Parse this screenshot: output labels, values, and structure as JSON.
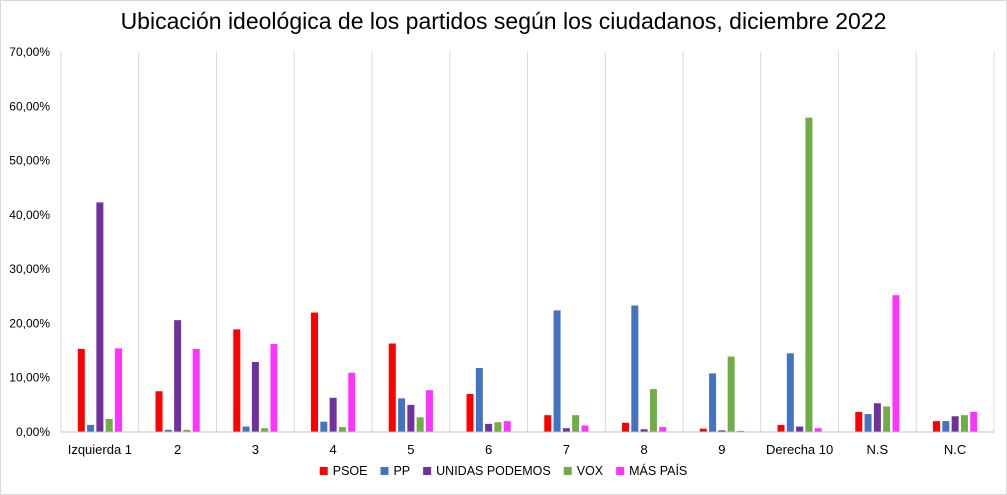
{
  "chart_data": {
    "type": "bar",
    "title": "Ubicación ideológica de los partidos según los ciudadanos, diciembre 2022",
    "xlabel": "",
    "ylabel": "",
    "ylim": [
      0,
      70
    ],
    "yticks": [
      "0,00%",
      "10,00%",
      "20,00%",
      "30,00%",
      "40,00%",
      "50,00%",
      "60,00%",
      "70,00%"
    ],
    "grid": "vertical",
    "legend_position": "bottom",
    "categories": [
      "Izquierda 1",
      "2",
      "3",
      "4",
      "5",
      "6",
      "7",
      "8",
      "9",
      "Derecha 10",
      "N.S",
      "N.C"
    ],
    "series": [
      {
        "name": "PSOE",
        "color": "#ff0000",
        "values": [
          15.3,
          7.5,
          18.9,
          22.0,
          16.3,
          7.0,
          3.1,
          1.7,
          0.6,
          1.3,
          3.7,
          2.0
        ]
      },
      {
        "name": "PP",
        "color": "#4472c4",
        "values": [
          1.3,
          0.4,
          1.0,
          1.9,
          6.2,
          11.8,
          22.4,
          23.3,
          10.8,
          14.5,
          3.3,
          2.0
        ]
      },
      {
        "name": "UNIDAS PODEMOS",
        "color": "#7030a0",
        "values": [
          42.3,
          20.6,
          12.9,
          6.3,
          5.0,
          1.5,
          0.7,
          0.5,
          0.3,
          1.0,
          5.3,
          2.9
        ]
      },
      {
        "name": "VOX",
        "color": "#70ad47",
        "values": [
          2.4,
          0.4,
          0.7,
          0.9,
          2.7,
          1.8,
          3.1,
          7.9,
          13.9,
          57.9,
          4.7,
          3.1
        ]
      },
      {
        "name": "MÁS PAÍS",
        "color": "#ff33ff",
        "values": [
          15.4,
          15.3,
          16.2,
          10.9,
          7.7,
          2.0,
          1.2,
          0.9,
          0.2,
          0.7,
          25.2,
          3.7
        ]
      }
    ]
  }
}
